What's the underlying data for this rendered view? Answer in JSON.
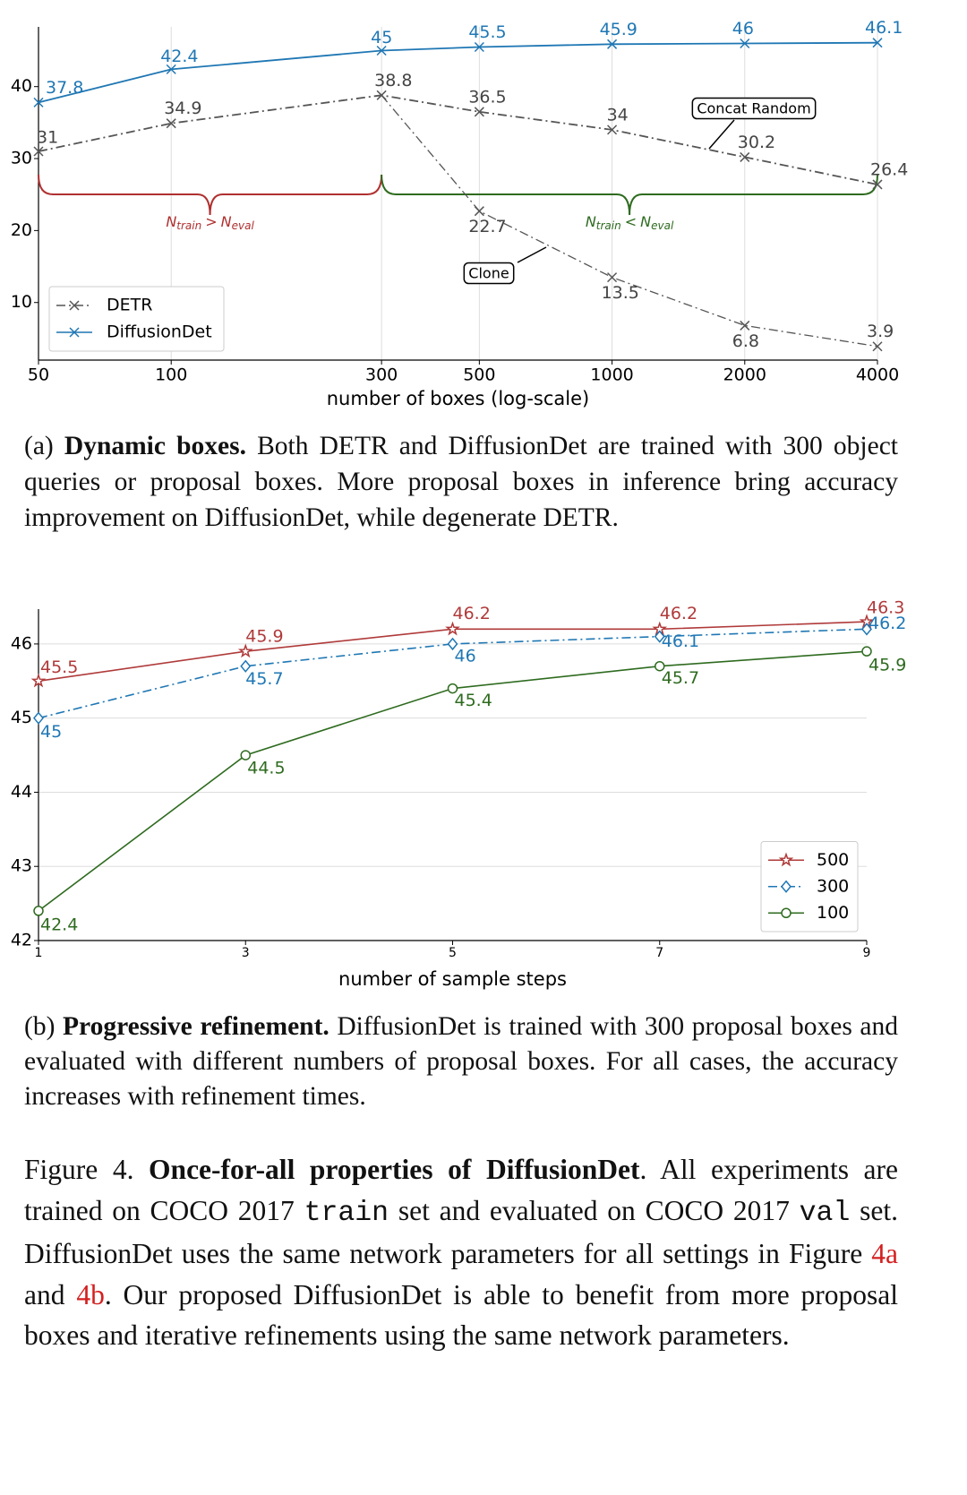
{
  "chart_data": [
    {
      "type": "line",
      "xscale": "log",
      "grid": "x",
      "legend": "lower left",
      "x": [
        50,
        100,
        300,
        500,
        1000,
        2000,
        4000
      ],
      "xlim": [
        50,
        4000
      ],
      "xticks": [
        50,
        100,
        300,
        500,
        1000,
        2000,
        4000
      ],
      "ylim": [
        2,
        48.3
      ],
      "yticks": [
        10,
        20,
        30,
        40
      ],
      "xlabel": "number of boxes (log-scale)",
      "series": [
        {
          "name": "DETR",
          "color": "#555555",
          "linestyle": "dashdot",
          "marker": "x",
          "values": [
            31.0,
            34.9,
            38.8,
            36.5,
            34.0,
            30.2,
            26.4
          ]
        },
        {
          "name": "DiffusionDet",
          "color": "#1f77b4",
          "linestyle": "solid",
          "marker": "x",
          "values": [
            37.8,
            42.4,
            45.0,
            45.5,
            45.9,
            46.0,
            46.1
          ]
        }
      ],
      "branch": {
        "x": [
          300,
          500,
          1000,
          2000,
          4000
        ],
        "values": [
          38.8,
          22.7,
          13.5,
          6.8,
          3.9
        ],
        "color": "#555555"
      },
      "annotations": [
        "Concat Random",
        "Clone"
      ],
      "braces": [
        {
          "label": [
            "N",
            "train",
            ">",
            "N",
            "eval"
          ],
          "color": "#b03030"
        },
        {
          "label": [
            "N",
            "train",
            "<",
            "N",
            "eval"
          ],
          "color": "#2e6b1f"
        }
      ]
    },
    {
      "type": "line",
      "grid": "y",
      "legend": "lower right",
      "x": [
        1,
        3,
        5,
        7,
        9
      ],
      "xlim": [
        1,
        9
      ],
      "xticks": [
        1,
        3,
        5,
        7,
        9
      ],
      "ylim": [
        42,
        46.47
      ],
      "yticks": [
        42,
        43,
        44,
        45,
        46
      ],
      "xlabel": "number of sample steps",
      "series": [
        {
          "name": "500",
          "color": "#b03a3a",
          "linestyle": "solid",
          "marker": "star",
          "values": [
            45.5,
            45.9,
            46.2,
            46.2,
            46.3
          ]
        },
        {
          "name": "300",
          "color": "#1f77b4",
          "linestyle": "dashdot",
          "marker": "diamond",
          "values": [
            45.0,
            45.7,
            46.0,
            46.1,
            46.2
          ]
        },
        {
          "name": "100",
          "color": "#2e6b1f",
          "linestyle": "solid",
          "marker": "circle",
          "values": [
            42.4,
            44.5,
            45.4,
            45.7,
            45.9
          ]
        }
      ]
    }
  ],
  "captions": [
    {
      "parts": [
        {
          "text": "(a) "
        },
        {
          "text": "Dynamic boxes.",
          "style": "bold"
        },
        {
          "text": " Both DETR and DiffusionDet are trained with 300 object queries or proposal boxes. More proposal boxes in inference bring accuracy improvement on DiffusionDet, while degenerate DETR."
        }
      ]
    },
    {
      "parts": [
        {
          "text": "(b) "
        },
        {
          "text": "Progressive refinement.",
          "style": "bold"
        },
        {
          "text": " DiffusionDet is trained with 300 proposal boxes and evaluated with different numbers of proposal boxes. For all cases, the accuracy increases with refinement times."
        }
      ]
    },
    {
      "parts": [
        {
          "text": "Figure 4. "
        },
        {
          "text": "Once-for-all properties of DiffusionDet",
          "style": "bold"
        },
        {
          "text": ". All experiments are trained on COCO 2017 "
        },
        {
          "text": "train",
          "style": "mono"
        },
        {
          "text": " set and evaluated on COCO 2017 "
        },
        {
          "text": "val",
          "style": "mono"
        },
        {
          "text": " set. DiffusionDet uses the same network parameters for all settings in Figure "
        },
        {
          "text": "4a",
          "style": "link"
        },
        {
          "text": " and "
        },
        {
          "text": "4b",
          "style": "link"
        },
        {
          "text": ". Our proposed DiffusionDet is able to benefit from more proposal boxes and iterative refinements using the same network parameters."
        }
      ]
    }
  ]
}
